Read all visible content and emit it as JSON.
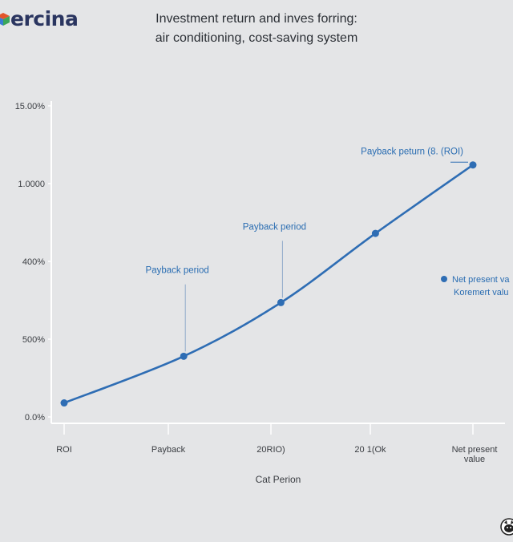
{
  "brand": {
    "name": "ercina",
    "logo_icon": "cube-logo-icon"
  },
  "chart_data": {
    "type": "line",
    "title_line1": "Investment return and inves forring:",
    "title_line2": "air conditioning, cost-saving system",
    "xlabel": "Cat Perion",
    "ylabel": "",
    "yticks": [
      "15.00%",
      "1.0000",
      "400%",
      "500%",
      "0.0%"
    ],
    "ylim": [
      0,
      4
    ],
    "categories": [
      "ROI",
      "Payback",
      "20RIO)",
      "20 1(Ok",
      "Net present|value"
    ],
    "series": [
      {
        "name": "Net present va",
        "color": "#2e6db4",
        "points": [
          [
            0,
            0.18
          ],
          [
            1.15,
            0.78
          ],
          [
            2.1,
            1.47
          ],
          [
            3.05,
            2.36
          ],
          [
            4.0,
            3.24
          ]
        ]
      }
    ],
    "annotations": [
      {
        "text": "Payback period",
        "x": 1.15,
        "y": 0.78,
        "label_y": 1.89
      },
      {
        "text": "Payback period",
        "x": 2.1,
        "y": 1.47,
        "label_y": 2.45
      },
      {
        "text": "Payback peturn (8. (ROI)",
        "x": 4.0,
        "y": 3.24,
        "label_y": 3.42
      }
    ],
    "legend": {
      "position": "right",
      "entries": [
        {
          "text": "Net present va"
        },
        {
          "text": "Koremert valu"
        }
      ]
    },
    "grid": false
  },
  "footer": {
    "icon": "cat-face-icon"
  }
}
